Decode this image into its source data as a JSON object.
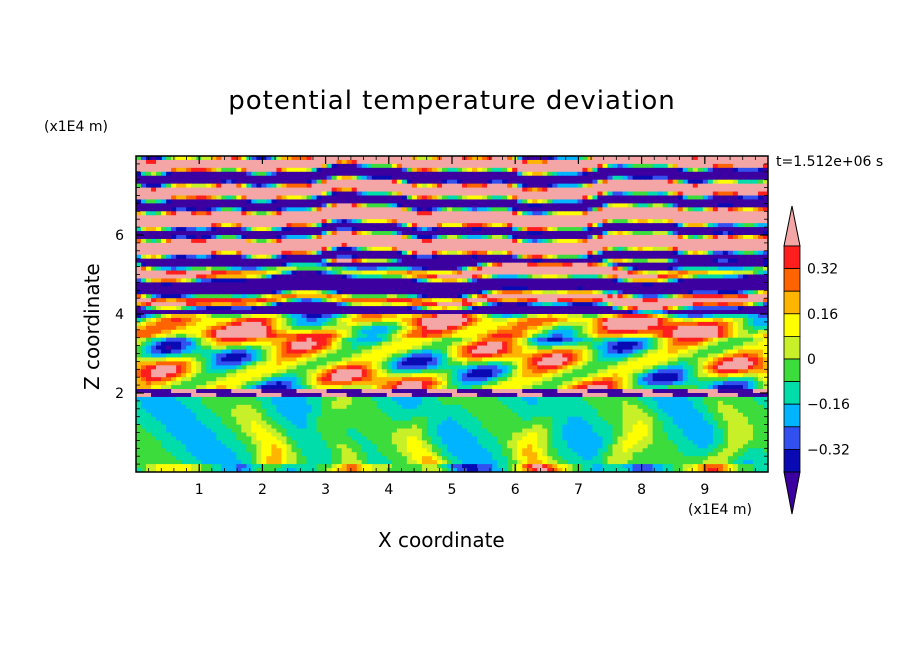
{
  "chart_data": {
    "type": "heatmap",
    "title": "potential temperature deviation",
    "xlabel": "X coordinate",
    "ylabel": "Z coordinate",
    "x_multiplier": "(x1E4 m)",
    "y_multiplier": "(x1E4 m)",
    "time_label": "t=1.512e+06 s",
    "xlim": [
      0,
      10
    ],
    "ylim": [
      0,
      8
    ],
    "x_ticks": [
      "1",
      "2",
      "3",
      "4",
      "5",
      "6",
      "7",
      "8",
      "9"
    ],
    "y_ticks": [
      "2",
      "4",
      "6"
    ],
    "colorbar": {
      "levels": [
        -0.4,
        -0.32,
        -0.24,
        -0.16,
        -0.08,
        0,
        0.08,
        0.16,
        0.24,
        0.32,
        0.4
      ],
      "tick_labels": [
        "0.32",
        "0.16",
        "0",
        "-0.16",
        "-0.32"
      ],
      "colors": [
        "#3d00a0",
        "#0a0ab4",
        "#3250f0",
        "#00b4ff",
        "#00dcaa",
        "#3cdc3c",
        "#c8f028",
        "#ffff00",
        "#ffb400",
        "#ff6400",
        "#ff1e1e",
        "#f4a6a6"
      ],
      "extend": "both"
    },
    "field_description_bands": [
      {
        "z_range": [
          6.8,
          8.0
        ],
        "pattern": "alternating pink/purple stripes"
      },
      {
        "z_range": [
          5.3,
          6.8
        ],
        "pattern": "pink dominant with purple bands"
      },
      {
        "z_range": [
          4.0,
          5.3
        ],
        "pattern": "purple, blue, orange and red layers"
      },
      {
        "z_range": [
          2.0,
          4.0
        ],
        "pattern": "cyan, green, yellow with red patches"
      },
      {
        "z_range": [
          1.8,
          2.1
        ],
        "pattern": "pink and purple thin layer"
      },
      {
        "z_range": [
          0.0,
          1.8
        ],
        "pattern": "cyan and green with yellow/orange plumes"
      }
    ]
  }
}
